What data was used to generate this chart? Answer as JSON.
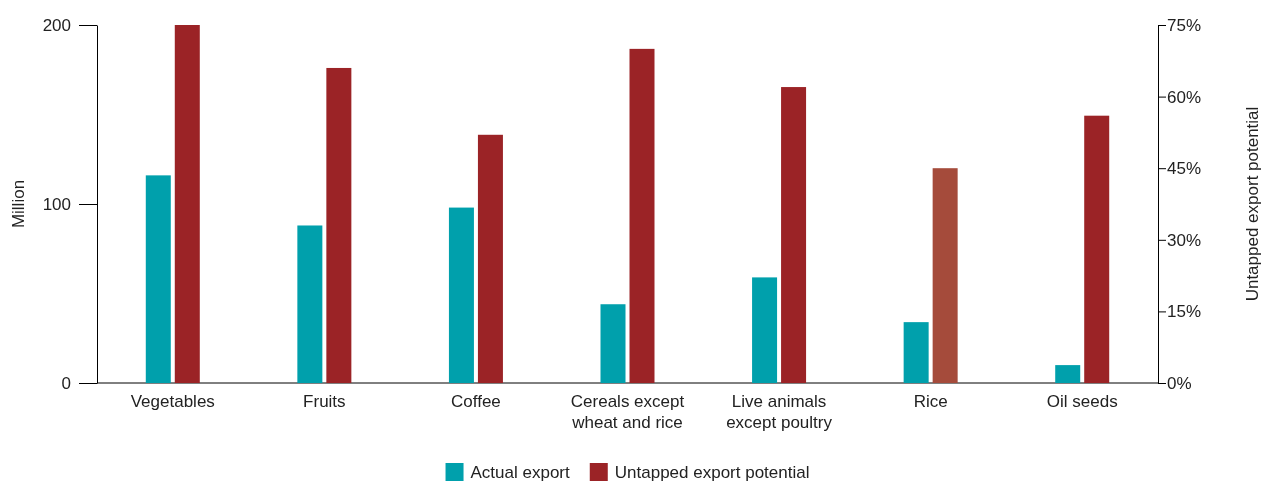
{
  "chart_data": {
    "type": "bar",
    "categories": [
      "Vegetables",
      "Fruits",
      "Coffee",
      "Cereals except wheat and rice",
      "Live animals except poultry",
      "Rice",
      "Oil seeds"
    ],
    "series": [
      {
        "name": "Actual export",
        "color": "#00a0ac",
        "values": [
          116,
          88,
          98,
          44,
          59,
          34,
          10
        ]
      },
      {
        "name": "Untapped export potential",
        "color": "#9b2326",
        "colors": [
          "#9b2326",
          "#9b2326",
          "#9b2326",
          "#9b2326",
          "#9b2326",
          "#a54b3b",
          "#9b2326"
        ],
        "axis": "y2",
        "values": [
          75,
          66,
          52,
          70,
          62,
          45,
          56
        ]
      }
    ],
    "ylabel": "Million",
    "y2label": "Untapped export potential",
    "ylim": [
      0,
      200
    ],
    "yticks": [
      0,
      100,
      200
    ],
    "y2lim": [
      0,
      75
    ],
    "y2ticks": [
      {
        "value": 0,
        "label": "0%"
      },
      {
        "value": 15,
        "label": "15%"
      },
      {
        "value": 30,
        "label": "30%"
      },
      {
        "value": 45,
        "label": "45%"
      },
      {
        "value": 60,
        "label": "60%"
      },
      {
        "value": 75,
        "label": "75%"
      }
    ],
    "legend": "bottom",
    "grid": false
  }
}
